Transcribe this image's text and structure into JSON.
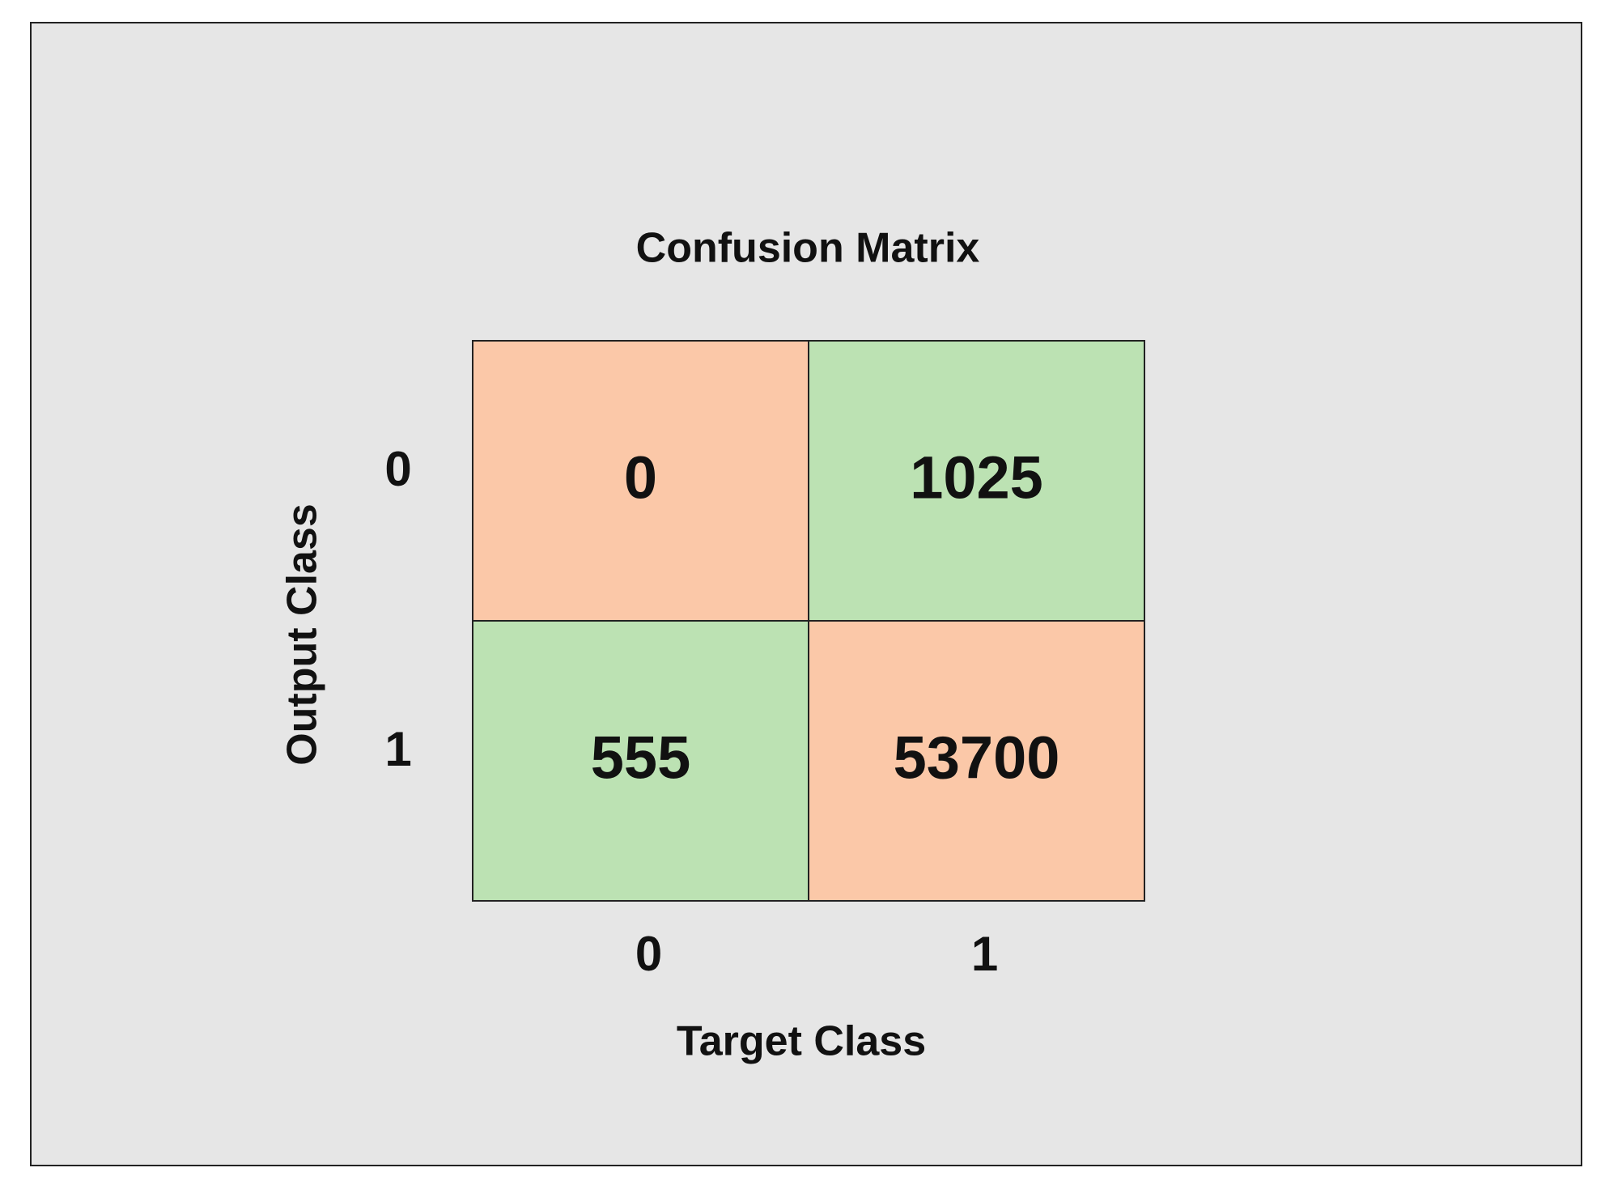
{
  "chart_data": {
    "type": "heatmap",
    "title": "Confusion Matrix",
    "x_label": "Target Class",
    "y_label": "Output Class",
    "x_categories": [
      "0",
      "1"
    ],
    "y_categories": [
      "0",
      "1"
    ],
    "values": [
      [
        0,
        1025
      ],
      [
        555,
        53700
      ]
    ],
    "colors": [
      [
        "#fbc8a8",
        "#bce2b3"
      ],
      [
        "#bce2b3",
        "#fbc8a8"
      ]
    ]
  }
}
